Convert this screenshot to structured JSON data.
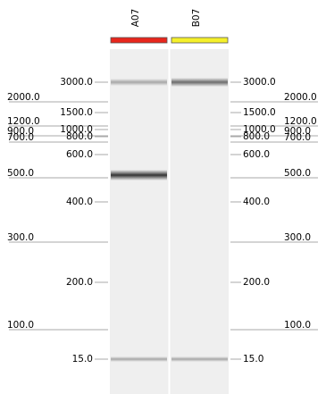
{
  "lanes": [
    {
      "name": "A07"
    },
    {
      "name": "B07"
    }
  ],
  "markers": [
    "3000.0",
    "2000.0",
    "1500.0",
    "1200.0",
    "1000.0",
    "900.0",
    "800.0",
    "700.0",
    "600.0",
    "500.0",
    "400.0",
    "300.0",
    "200.0",
    "100.0",
    "15.0"
  ]
}
